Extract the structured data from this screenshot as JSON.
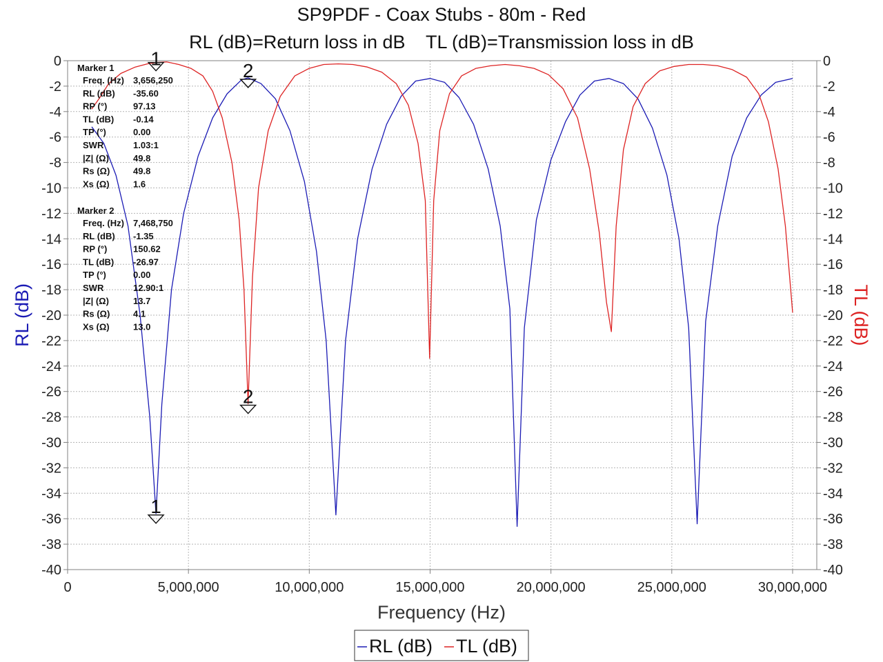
{
  "chart_data": {
    "type": "line",
    "title": "SP9PDF - Coax Stubs - 80m - Red",
    "subtitle": "RL (dB)=Return loss in dB    TL (dB)=Transmission loss in dB",
    "xlabel": "Frequency (Hz)",
    "ylabel_left": "RL (dB)",
    "ylabel_right": "TL (dB)",
    "xlim": [
      0,
      31000000
    ],
    "ylim": [
      -40,
      0
    ],
    "x_ticks": [
      0,
      5000000,
      10000000,
      15000000,
      20000000,
      25000000,
      30000000
    ],
    "x_tick_labels": [
      "0",
      "5,000,000",
      "10,000,000",
      "15,000,000",
      "20,000,000",
      "25,000,000",
      "30,000,000"
    ],
    "y_ticks": [
      0,
      -2,
      -4,
      -6,
      -8,
      -10,
      -12,
      -14,
      -16,
      -18,
      -20,
      -22,
      -24,
      -26,
      -28,
      -30,
      -32,
      -34,
      -36,
      -38,
      -40
    ],
    "grid": true,
    "legend_position": "bottom-center",
    "series": [
      {
        "name": "RL (dB)",
        "color": "#1a1ab4",
        "axis": "left",
        "x": [
          1000000,
          1500000,
          2000000,
          2500000,
          3000000,
          3400000,
          3656250,
          3900000,
          4300000,
          4800000,
          5400000,
          6000000,
          6600000,
          7200000,
          7468750,
          8000000,
          8600000,
          9200000,
          9800000,
          10300000,
          10700000,
          11100000,
          11500000,
          12000000,
          12600000,
          13200000,
          13800000,
          14400000,
          15000000,
          15600000,
          16200000,
          16800000,
          17400000,
          17900000,
          18300000,
          18600000,
          18900000,
          19400000,
          20000000,
          20600000,
          21200000,
          21800000,
          22400000,
          23000000,
          23600000,
          24200000,
          24800000,
          25300000,
          25700000,
          26050000,
          26400000,
          26900000,
          27500000,
          28100000,
          28700000,
          29300000,
          30000000
        ],
        "y": [
          -5.2,
          -6.5,
          -9.0,
          -13.0,
          -20.0,
          -28.0,
          -35.6,
          -27.0,
          -18.0,
          -12.0,
          -7.5,
          -4.5,
          -2.6,
          -1.5,
          -1.35,
          -1.8,
          -3.0,
          -5.5,
          -9.5,
          -15.0,
          -22.0,
          -35.7,
          -22.0,
          -14.0,
          -8.5,
          -5.0,
          -2.8,
          -1.6,
          -1.4,
          -1.7,
          -2.9,
          -5.0,
          -8.5,
          -13.0,
          -19.5,
          -36.6,
          -21.0,
          -12.5,
          -7.8,
          -4.8,
          -2.7,
          -1.6,
          -1.4,
          -1.8,
          -3.0,
          -5.3,
          -9.0,
          -14.0,
          -21.0,
          -36.4,
          -20.5,
          -13.0,
          -7.5,
          -4.5,
          -2.7,
          -1.7,
          -1.4
        ]
      },
      {
        "name": "TL (dB)",
        "color": "#dd2222",
        "axis": "right",
        "x": [
          1000000,
          1300000,
          1700000,
          2200000,
          2800000,
          3300000,
          3656250,
          4100000,
          4600000,
          5100000,
          5600000,
          6000000,
          6400000,
          6800000,
          7100000,
          7300000,
          7468750,
          7650000,
          7900000,
          8300000,
          8800000,
          9400000,
          10000000,
          10600000,
          11200000,
          11800000,
          12400000,
          13000000,
          13600000,
          14100000,
          14500000,
          14800000,
          14980000,
          15150000,
          15400000,
          15800000,
          16300000,
          16900000,
          17500000,
          18100000,
          18700000,
          19300000,
          19900000,
          20500000,
          21100000,
          21600000,
          22000000,
          22300000,
          22500000,
          22700000,
          23000000,
          23400000,
          23900000,
          24500000,
          25100000,
          25700000,
          26300000,
          26900000,
          27500000,
          28100000,
          28600000,
          29000000,
          29400000,
          29700000,
          30000000
        ],
        "y": [
          -3.8,
          -3.0,
          -1.8,
          -1.0,
          -0.5,
          -0.25,
          -0.14,
          -0.1,
          -0.3,
          -0.6,
          -1.2,
          -2.4,
          -4.5,
          -8.0,
          -12.5,
          -18.0,
          -26.97,
          -17.0,
          -10.0,
          -5.5,
          -2.8,
          -1.2,
          -0.6,
          -0.3,
          -0.25,
          -0.3,
          -0.5,
          -0.9,
          -1.8,
          -3.5,
          -6.5,
          -11.0,
          -23.4,
          -11.0,
          -5.5,
          -2.6,
          -1.2,
          -0.6,
          -0.4,
          -0.3,
          -0.4,
          -0.6,
          -1.1,
          -2.2,
          -4.5,
          -8.5,
          -13.5,
          -19.0,
          -21.3,
          -13.0,
          -7.0,
          -3.6,
          -1.8,
          -0.8,
          -0.45,
          -0.3,
          -0.3,
          -0.4,
          -0.7,
          -1.3,
          -2.6,
          -4.8,
          -8.5,
          -13.0,
          -19.8
        ]
      }
    ],
    "markers": [
      {
        "id": "1",
        "x": 3656250,
        "title": "Marker 1",
        "rows": [
          {
            "label": "Freq. (Hz)",
            "value": "3,656,250"
          },
          {
            "label": "RL (dB)",
            "value": "-35.60"
          },
          {
            "label": "RP (°)",
            "value": "97.13"
          },
          {
            "label": "TL (dB)",
            "value": "-0.14"
          },
          {
            "label": "TP (°)",
            "value": "0.00"
          },
          {
            "label": "SWR",
            "value": "1.03:1"
          },
          {
            "label": "|Z| (Ω)",
            "value": "49.8"
          },
          {
            "label": "Rs (Ω)",
            "value": "49.8"
          },
          {
            "label": "Xs (Ω)",
            "value": "1.6"
          }
        ]
      },
      {
        "id": "2",
        "x": 7468750,
        "title": "Marker 2",
        "rows": [
          {
            "label": "Freq. (Hz)",
            "value": "7,468,750"
          },
          {
            "label": "RL (dB)",
            "value": "-1.35"
          },
          {
            "label": "RP (°)",
            "value": "150.62"
          },
          {
            "label": "TL (dB)",
            "value": "-26.97"
          },
          {
            "label": "TP (°)",
            "value": "0.00"
          },
          {
            "label": "SWR",
            "value": "12.90:1"
          },
          {
            "label": "|Z| (Ω)",
            "value": "13.7"
          },
          {
            "label": "Rs (Ω)",
            "value": "4.1"
          },
          {
            "label": "Xs (Ω)",
            "value": "13.0"
          }
        ]
      }
    ]
  }
}
